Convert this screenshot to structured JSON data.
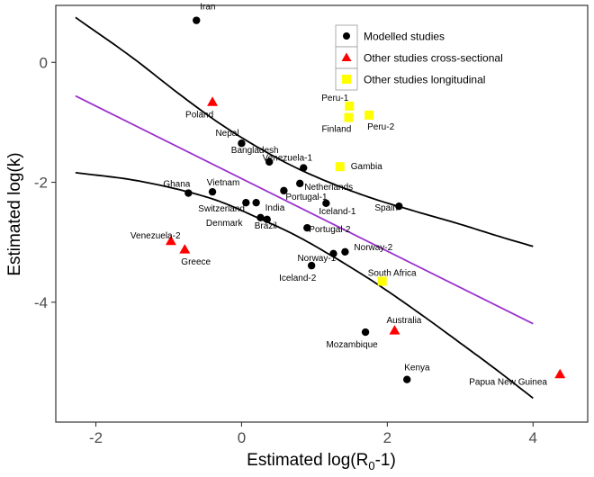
{
  "chart_data": {
    "type": "scatter",
    "xlabel": "Estimated log(R₀-1)",
    "ylabel": "Estimated log(k)",
    "xlim": [
      -2.55,
      4.75
    ],
    "ylim": [
      -6.0,
      0.95
    ],
    "x_ticks": [
      {
        "value": -2,
        "label": "-2"
      },
      {
        "value": 0,
        "label": "0"
      },
      {
        "value": 2,
        "label": "2"
      },
      {
        "value": 4,
        "label": "4"
      }
    ],
    "y_ticks": [
      {
        "value": 0,
        "label": "0"
      },
      {
        "value": -2,
        "label": "-2"
      },
      {
        "value": -4,
        "label": "-4"
      }
    ],
    "grid": false,
    "legend_position": "top-right",
    "series": [
      {
        "name": "Modelled studies",
        "marker": "circle",
        "color": "#000000",
        "points": [
          {
            "label": "Iran",
            "x": -0.62,
            "y": 0.7
          },
          {
            "label": "Nepal",
            "x": 0.0,
            "y": -1.35
          },
          {
            "label": "Bangladesh",
            "x": 0.38,
            "y": -1.66
          },
          {
            "label": "Venezuela-1",
            "x": 0.85,
            "y": -1.76
          },
          {
            "label": "Netherlands",
            "x": 0.8,
            "y": -2.02
          },
          {
            "label": "Ghana",
            "x": -0.73,
            "y": -2.18
          },
          {
            "label": "Vietnam",
            "x": -0.4,
            "y": -2.16
          },
          {
            "label": "Portugal-1",
            "x": 0.58,
            "y": -2.14
          },
          {
            "label": "Switzerland",
            "x": 0.06,
            "y": -2.34
          },
          {
            "label": "India",
            "x": 0.2,
            "y": -2.34
          },
          {
            "label": "Denmark",
            "x": 0.26,
            "y": -2.59
          },
          {
            "label": "Brazil",
            "x": 0.35,
            "y": -2.62
          },
          {
            "label": "Portugal-2",
            "x": 0.9,
            "y": -2.76
          },
          {
            "label": "Iceland-1",
            "x": 1.16,
            "y": -2.35
          },
          {
            "label": "Spain",
            "x": 2.16,
            "y": -2.4
          },
          {
            "label": "Norway-2",
            "x": 1.42,
            "y": -3.16
          },
          {
            "label": "Norway-1",
            "x": 1.26,
            "y": -3.19
          },
          {
            "label": "Iceland-2",
            "x": 0.96,
            "y": -3.39
          },
          {
            "label": "Mozambique",
            "x": 1.7,
            "y": -4.5
          },
          {
            "label": "Kenya",
            "x": 2.27,
            "y": -5.29
          }
        ]
      },
      {
        "name": "Other studies cross-sectional",
        "marker": "triangle",
        "color": "#ff0000",
        "points": [
          {
            "label": "Poland",
            "x": -0.4,
            "y": -0.66
          },
          {
            "label": "Venezuela-2",
            "x": -0.97,
            "y": -2.98
          },
          {
            "label": "Greece",
            "x": -0.78,
            "y": -3.12
          },
          {
            "label": "Australia",
            "x": 2.1,
            "y": -4.47
          },
          {
            "label": "Papua New Guinea",
            "x": 4.37,
            "y": -5.2
          }
        ]
      },
      {
        "name": "Other studies longitudinal",
        "marker": "square",
        "color": "#ffff00",
        "points": [
          {
            "label": "Peru-1",
            "x": 1.48,
            "y": -0.73
          },
          {
            "label": "Finland",
            "x": 1.47,
            "y": -0.92
          },
          {
            "label": "Peru-2",
            "x": 1.75,
            "y": -0.88
          },
          {
            "label": "Gambia",
            "x": 1.35,
            "y": -1.74
          },
          {
            "label": "South Africa",
            "x": 1.93,
            "y": -3.65
          }
        ]
      }
    ],
    "lines": [
      {
        "role": "regression",
        "color": "#9a32cd",
        "x": [
          -2.28,
          4.0
        ],
        "y": [
          -0.56,
          -4.36
        ]
      },
      {
        "role": "upper-bound",
        "color": "#000000",
        "x": [
          -2.28,
          -1.5,
          -0.8,
          -0.3,
          0.2,
          0.7,
          1.2,
          1.8,
          2.4,
          3.0,
          3.5,
          4.0
        ],
        "y": [
          0.75,
          0.08,
          -0.58,
          -1.02,
          -1.4,
          -1.73,
          -2.0,
          -2.27,
          -2.49,
          -2.7,
          -2.89,
          -3.07
        ]
      },
      {
        "role": "lower-bound",
        "color": "#000000",
        "x": [
          -2.28,
          -1.5,
          -0.8,
          -0.3,
          0.2,
          0.7,
          1.2,
          1.8,
          2.4,
          3.0,
          3.5,
          4.0
        ],
        "y": [
          -1.84,
          -1.96,
          -2.14,
          -2.32,
          -2.58,
          -2.86,
          -3.2,
          -3.65,
          -4.15,
          -4.68,
          -5.13,
          -5.6
        ]
      }
    ]
  }
}
